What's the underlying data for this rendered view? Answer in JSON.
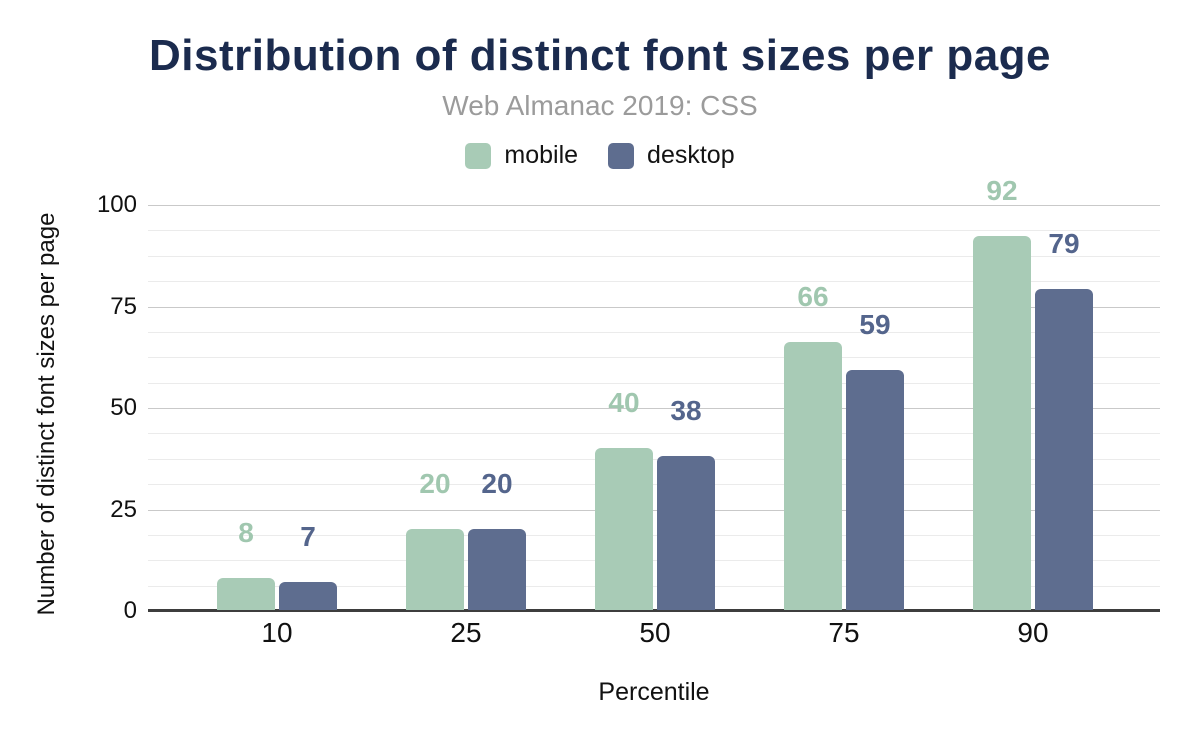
{
  "chart_data": {
    "type": "bar",
    "title": "Distribution of distinct font sizes per page",
    "subtitle": "Web Almanac 2019: CSS",
    "xlabel": "Percentile",
    "ylabel": "Number of distinct font sizes per page",
    "categories": [
      "10",
      "25",
      "50",
      "75",
      "90"
    ],
    "series": [
      {
        "name": "mobile",
        "color": "#a8cbb6",
        "label_color": "#a0c7af",
        "values": [
          8,
          20,
          40,
          66,
          92
        ]
      },
      {
        "name": "desktop",
        "color": "#5e6d8f",
        "label_color": "#54658c",
        "values": [
          7,
          20,
          38,
          59,
          79
        ]
      }
    ],
    "ylim": [
      0,
      100
    ],
    "yticks": [
      0,
      25,
      50,
      75,
      100
    ],
    "minor_divisions_per_major": 4,
    "grid": true,
    "legend_position": "top",
    "bar_value_labels": true
  },
  "styles": {
    "background": "#ffffff",
    "title_color": "#1b2b4e",
    "subtitle_color": "#9b9b9b",
    "axis_text_color": "#111111",
    "grid_minor_color": "#ebebeb",
    "grid_major_color": "#c9c9c9",
    "axis_line_color": "#3d3d3d"
  }
}
